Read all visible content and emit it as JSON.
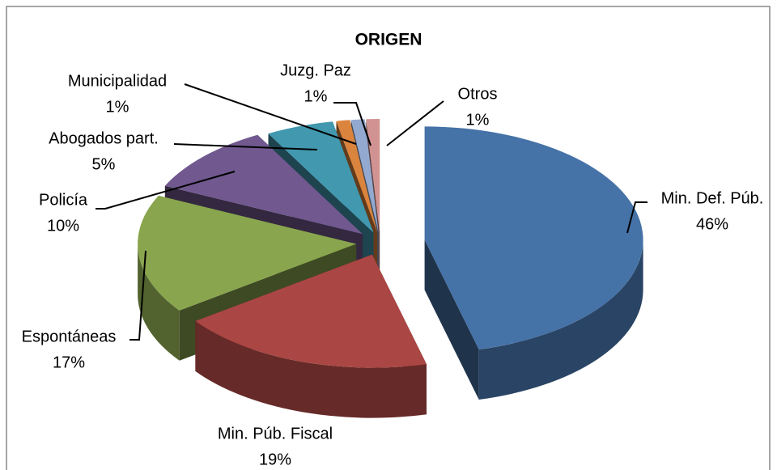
{
  "chart_data": {
    "type": "pie",
    "title": "ORIGEN",
    "categories": [
      "Min. Def. Púb.",
      "Min. Púb. Fiscal",
      "Espontáneas",
      "Policía",
      "Abogados part.",
      "Municipalidad",
      "Juzg. Paz",
      "Otros"
    ],
    "values": [
      46,
      19,
      17,
      10,
      5,
      1,
      1,
      1
    ],
    "value_labels": [
      "46%",
      "19%",
      "17%",
      "10%",
      "5%",
      "1%",
      "1%",
      "1%"
    ],
    "colors": [
      "#4572a7",
      "#aa4643",
      "#89a54e",
      "#71588f",
      "#4198af",
      "#db843d",
      "#93a9cf",
      "#d19392"
    ]
  }
}
